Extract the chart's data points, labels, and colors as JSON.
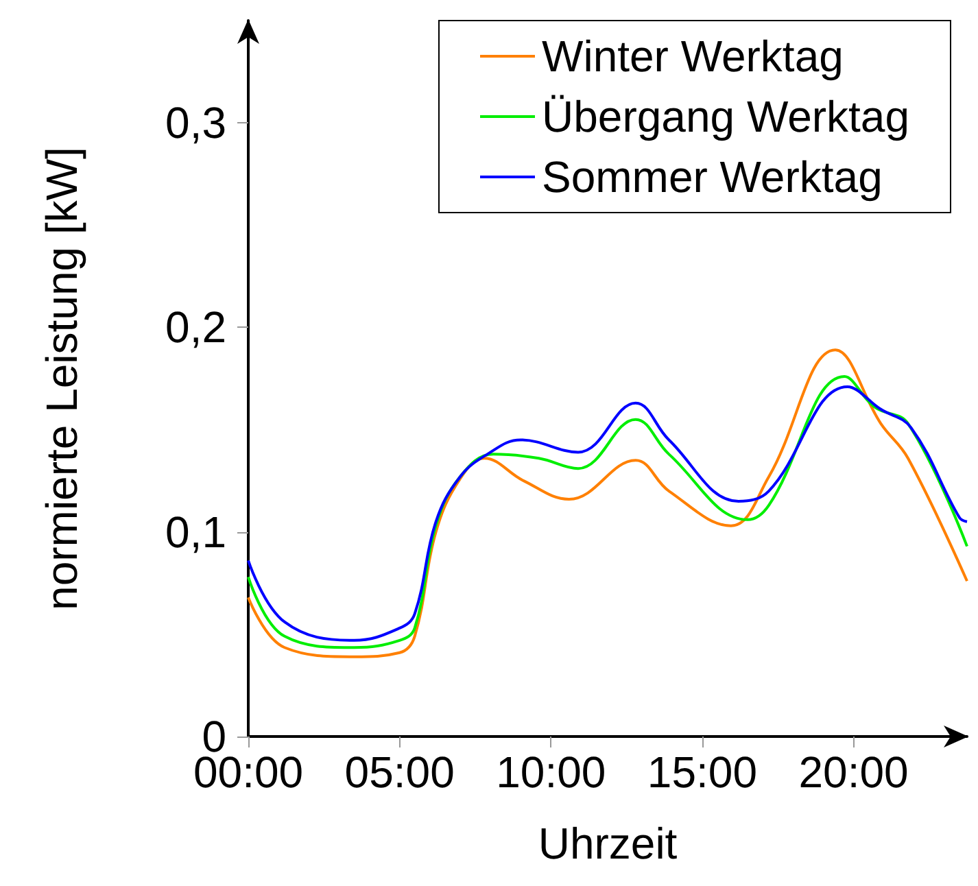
{
  "chart_data": {
    "type": "line",
    "xlabel": "Uhrzeit",
    "ylabel": "normierte Leistung [kW]",
    "xlim": [
      0,
      23.75
    ],
    "xticks": [
      {
        "value": 0,
        "label": "00:00"
      },
      {
        "value": 5,
        "label": "05:00"
      },
      {
        "value": 10,
        "label": "10:00"
      },
      {
        "value": 15,
        "label": "15:00"
      },
      {
        "value": 20,
        "label": "20:00"
      }
    ],
    "ylim": [
      0,
      0.35
    ],
    "yticks": [
      0,
      {
        "value": 0.1,
        "label": "0,1"
      },
      {
        "value": 0.2,
        "label": "0,2"
      },
      {
        "value": 0.3,
        "label": "0,3"
      }
    ],
    "grid": false,
    "legend": "top right",
    "marker": "none",
    "line_style": "solid",
    "series": [
      {
        "name": "Winter Werktag",
        "color": "#ff8000",
        "x": [
          0,
          1.2,
          3.5,
          5,
          5.5,
          6.2,
          7,
          7.8,
          9.1,
          10.6,
          12.8,
          13.9,
          15.95,
          17.2,
          19.4,
          20.9,
          21.8,
          23.75
        ],
        "values": [
          0.068,
          0.0435,
          0.039,
          0.041,
          0.049,
          0.1,
          0.126,
          0.136,
          0.125,
          0.116,
          0.135,
          0.12,
          0.103,
          0.127,
          0.189,
          0.153,
          0.136,
          0.076
        ]
      },
      {
        "name": "Übergang Werktag",
        "color": "#00ee00",
        "x": [
          0,
          1.2,
          3.5,
          5,
          5.5,
          6.2,
          7,
          8.1,
          9.6,
          10.9,
          12.8,
          13.9,
          16.5,
          17.2,
          19.7,
          20.7,
          21.8,
          23.75
        ],
        "values": [
          0.078,
          0.049,
          0.0435,
          0.047,
          0.053,
          0.103,
          0.127,
          0.138,
          0.136,
          0.131,
          0.155,
          0.138,
          0.106,
          0.113,
          0.176,
          0.161,
          0.153,
          0.093
        ]
      },
      {
        "name": "Sommer Werktag",
        "color": "#0000ff",
        "x": [
          0,
          1.2,
          3.5,
          5,
          5.5,
          6.2,
          7,
          7.9,
          9.0,
          10.9,
          12.8,
          13.9,
          16.2,
          17.2,
          19.8,
          20.9,
          21.9,
          23.5,
          23.75
        ],
        "values": [
          0.086,
          0.056,
          0.047,
          0.053,
          0.06,
          0.105,
          0.127,
          0.138,
          0.145,
          0.139,
          0.163,
          0.145,
          0.115,
          0.12,
          0.171,
          0.16,
          0.151,
          0.107,
          0.105
        ]
      }
    ]
  }
}
